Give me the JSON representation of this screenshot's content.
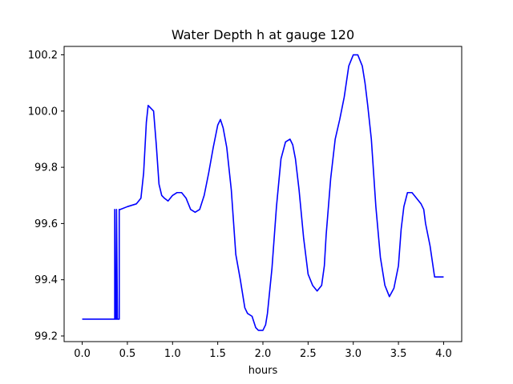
{
  "chart_data": {
    "type": "line",
    "title": "Water Depth h at gauge 120",
    "xlabel": "hours",
    "ylabel": "",
    "xlim": [
      -0.2,
      4.2
    ],
    "ylim": [
      99.18,
      100.23
    ],
    "xticks": [
      0.0,
      0.5,
      1.0,
      1.5,
      2.0,
      2.5,
      3.0,
      3.5,
      4.0
    ],
    "xtick_labels": [
      "0.0",
      "0.5",
      "1.0",
      "1.5",
      "2.0",
      "2.5",
      "3.0",
      "3.5",
      "4.0"
    ],
    "yticks": [
      99.2,
      99.4,
      99.6,
      99.8,
      100.0,
      100.2
    ],
    "ytick_labels": [
      "99.2",
      "99.4",
      "99.6",
      "99.8",
      "100.0",
      "100.2"
    ],
    "grid": false,
    "series": [
      {
        "color": "#0000ff",
        "x": [
          0.0,
          0.34,
          0.36,
          0.36,
          0.37,
          0.38,
          0.38,
          0.39,
          0.41,
          0.41,
          0.42,
          0.5,
          0.6,
          0.65,
          0.68,
          0.71,
          0.73,
          0.76,
          0.79,
          0.82,
          0.85,
          0.88,
          0.91,
          0.95,
          1.0,
          1.05,
          1.1,
          1.15,
          1.2,
          1.25,
          1.3,
          1.35,
          1.4,
          1.45,
          1.5,
          1.53,
          1.56,
          1.6,
          1.65,
          1.7,
          1.75,
          1.8,
          1.83,
          1.88,
          1.92,
          1.95,
          2.0,
          2.03,
          2.05,
          2.1,
          2.15,
          2.2,
          2.25,
          2.3,
          2.33,
          2.36,
          2.4,
          2.45,
          2.5,
          2.55,
          2.6,
          2.65,
          2.68,
          2.7,
          2.75,
          2.8,
          2.85,
          2.9,
          2.95,
          3.0,
          3.05,
          3.1,
          3.13,
          3.16,
          3.2,
          3.25,
          3.3,
          3.35,
          3.4,
          3.45,
          3.5,
          3.53,
          3.56,
          3.6,
          3.65,
          3.7,
          3.75,
          3.78,
          3.8,
          3.85,
          3.9,
          3.95,
          4.0
        ],
        "y": [
          99.26,
          99.26,
          99.26,
          99.65,
          99.26,
          99.26,
          99.65,
          99.26,
          99.26,
          99.65,
          99.65,
          99.66,
          99.67,
          99.69,
          99.78,
          99.96,
          100.02,
          100.01,
          100.0,
          99.88,
          99.74,
          99.7,
          99.69,
          99.68,
          99.7,
          99.71,
          99.71,
          99.69,
          99.65,
          99.64,
          99.65,
          99.7,
          99.78,
          99.87,
          99.95,
          99.97,
          99.94,
          99.87,
          99.72,
          99.49,
          99.4,
          99.3,
          99.28,
          99.27,
          99.23,
          99.22,
          99.22,
          99.24,
          99.28,
          99.44,
          99.66,
          99.83,
          99.89,
          99.9,
          99.88,
          99.83,
          99.72,
          99.55,
          99.42,
          99.38,
          99.36,
          99.38,
          99.45,
          99.56,
          99.76,
          99.9,
          99.97,
          100.05,
          100.16,
          100.2,
          100.2,
          100.16,
          100.1,
          100.02,
          99.9,
          99.66,
          99.48,
          99.38,
          99.34,
          99.37,
          99.45,
          99.58,
          99.66,
          99.71,
          99.71,
          99.69,
          99.67,
          99.65,
          99.6,
          99.52,
          99.41,
          99.41,
          99.41
        ]
      }
    ]
  }
}
